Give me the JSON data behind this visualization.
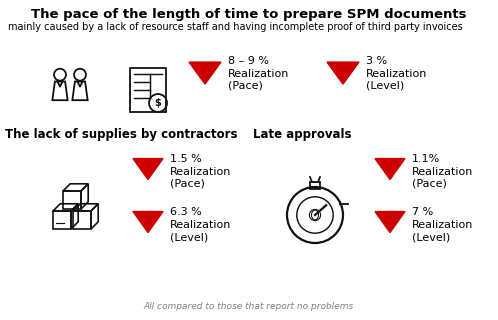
{
  "title": "The pace of the length of time to prepare SPM documents",
  "subtitle": "mainly caused by a lack of resource staff and having incomplete proof of third party invoices",
  "section1_label": "The lack of supplies by contractors",
  "section2_label": "Late approvals",
  "footer": "All compared to those that report no problems",
  "top_stat1_pct": "8 – 9 %",
  "top_stat1_line1": "Realization",
  "top_stat1_line2": "(Pace)",
  "top_stat2_pct": "3 %",
  "top_stat2_line1": "Realization",
  "top_stat2_line2": "(Level)",
  "left_stat1_pct": "1.5 %",
  "left_stat1_line1": "Realization",
  "left_stat1_line2": "(Pace)",
  "left_stat2_pct": "6.3 %",
  "left_stat2_line1": "Realization",
  "left_stat2_line2": "(Level)",
  "right_stat1_pct": "1.1%",
  "right_stat1_line1": "Realization",
  "right_stat1_line2": "(Pace)",
  "right_stat2_pct": "7 %",
  "right_stat2_line1": "Realization",
  "right_stat2_line2": "(Level)",
  "arrow_color": "#cc0000",
  "bg_color": "#ffffff",
  "title_fontsize": 9.5,
  "subtitle_fontsize": 7,
  "section_fontsize": 8.5,
  "stat_pct_fontsize": 8,
  "stat_label_fontsize": 8,
  "footer_fontsize": 6.5,
  "icon_color": "#111111"
}
